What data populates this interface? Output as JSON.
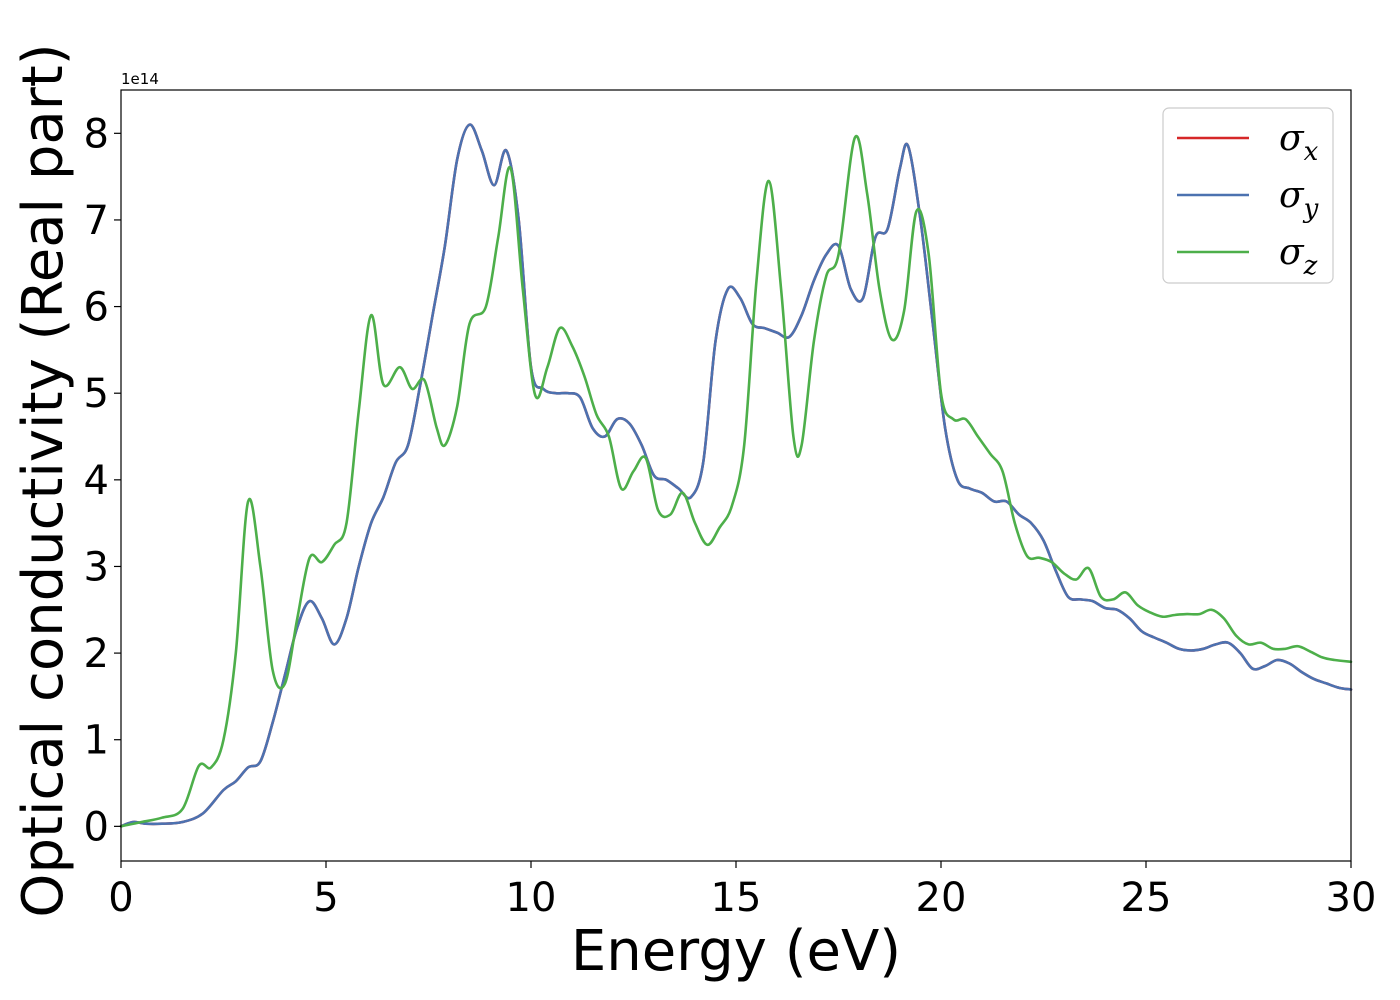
{
  "chart_data": {
    "type": "line",
    "xlabel": "Energy (eV)",
    "ylabel": "Optical conductivity (Real part)",
    "y_offset_label": "1e14",
    "xlim": [
      0,
      30
    ],
    "ylim": [
      -0.4,
      8.5
    ],
    "x_ticks": [
      0,
      5,
      10,
      15,
      20,
      25,
      30
    ],
    "y_ticks": [
      0,
      1,
      2,
      3,
      4,
      5,
      6,
      7,
      8
    ],
    "grid": false,
    "legend_position": "top-right",
    "series": [
      {
        "name": "σx",
        "legend_symbol": "σ",
        "legend_sub": "x",
        "color": "#d62728",
        "x": [
          0,
          0.3,
          0.6,
          1.0,
          1.5,
          2.0,
          2.5,
          2.8,
          3.1,
          3.4,
          3.7,
          4.0,
          4.3,
          4.6,
          4.9,
          5.2,
          5.5,
          5.8,
          6.1,
          6.4,
          6.7,
          7.0,
          7.3,
          7.6,
          7.9,
          8.2,
          8.5,
          8.8,
          9.1,
          9.4,
          9.7,
          10.0,
          10.3,
          10.6,
          10.9,
          11.2,
          11.5,
          11.8,
          12.1,
          12.4,
          12.7,
          13.0,
          13.3,
          13.6,
          13.9,
          14.2,
          14.5,
          14.8,
          15.1,
          15.4,
          15.7,
          16.0,
          16.3,
          16.6,
          16.9,
          17.2,
          17.5,
          17.8,
          18.1,
          18.4,
          18.7,
          19.0,
          19.2,
          19.5,
          19.8,
          20.1,
          20.4,
          20.7,
          21.0,
          21.3,
          21.6,
          21.9,
          22.2,
          22.5,
          22.8,
          23.1,
          23.4,
          23.7,
          24.0,
          24.3,
          24.6,
          24.9,
          25.2,
          25.5,
          25.8,
          26.1,
          26.4,
          26.7,
          27.0,
          27.3,
          27.6,
          27.9,
          28.2,
          28.5,
          28.8,
          29.1,
          29.4,
          29.7,
          30.0
        ],
        "values": [
          0,
          0.05,
          0.03,
          0.03,
          0.05,
          0.15,
          0.42,
          0.52,
          0.68,
          0.75,
          1.2,
          1.75,
          2.3,
          2.6,
          2.4,
          2.1,
          2.4,
          3.0,
          3.5,
          3.8,
          4.2,
          4.4,
          5.1,
          5.9,
          6.7,
          7.7,
          8.1,
          7.8,
          7.4,
          7.8,
          7.0,
          5.3,
          5.05,
          5.0,
          5.0,
          4.95,
          4.6,
          4.5,
          4.7,
          4.65,
          4.4,
          4.05,
          4.0,
          3.9,
          3.8,
          4.2,
          5.6,
          6.2,
          6.1,
          5.8,
          5.75,
          5.7,
          5.65,
          5.9,
          6.3,
          6.6,
          6.7,
          6.2,
          6.1,
          6.8,
          6.9,
          7.6,
          7.85,
          7.0,
          5.8,
          4.6,
          4.0,
          3.9,
          3.85,
          3.75,
          3.75,
          3.6,
          3.5,
          3.3,
          2.95,
          2.65,
          2.62,
          2.6,
          2.52,
          2.5,
          2.4,
          2.25,
          2.18,
          2.12,
          2.05,
          2.03,
          2.05,
          2.1,
          2.12,
          2.0,
          1.82,
          1.85,
          1.92,
          1.88,
          1.78,
          1.7,
          1.65,
          1.6,
          1.58
        ]
      },
      {
        "name": "σy",
        "legend_symbol": "σ",
        "legend_sub": "y",
        "color": "#4c72b0",
        "x": [
          0,
          0.3,
          0.6,
          1.0,
          1.5,
          2.0,
          2.5,
          2.8,
          3.1,
          3.4,
          3.7,
          4.0,
          4.3,
          4.6,
          4.9,
          5.2,
          5.5,
          5.8,
          6.1,
          6.4,
          6.7,
          7.0,
          7.3,
          7.6,
          7.9,
          8.2,
          8.5,
          8.8,
          9.1,
          9.4,
          9.7,
          10.0,
          10.3,
          10.6,
          10.9,
          11.2,
          11.5,
          11.8,
          12.1,
          12.4,
          12.7,
          13.0,
          13.3,
          13.6,
          13.9,
          14.2,
          14.5,
          14.8,
          15.1,
          15.4,
          15.7,
          16.0,
          16.3,
          16.6,
          16.9,
          17.2,
          17.5,
          17.8,
          18.1,
          18.4,
          18.7,
          19.0,
          19.2,
          19.5,
          19.8,
          20.1,
          20.4,
          20.7,
          21.0,
          21.3,
          21.6,
          21.9,
          22.2,
          22.5,
          22.8,
          23.1,
          23.4,
          23.7,
          24.0,
          24.3,
          24.6,
          24.9,
          25.2,
          25.5,
          25.8,
          26.1,
          26.4,
          26.7,
          27.0,
          27.3,
          27.6,
          27.9,
          28.2,
          28.5,
          28.8,
          29.1,
          29.4,
          29.7,
          30.0
        ],
        "values": [
          0,
          0.05,
          0.03,
          0.03,
          0.05,
          0.15,
          0.42,
          0.52,
          0.68,
          0.75,
          1.2,
          1.75,
          2.3,
          2.6,
          2.4,
          2.1,
          2.4,
          3.0,
          3.5,
          3.8,
          4.2,
          4.4,
          5.1,
          5.9,
          6.7,
          7.7,
          8.1,
          7.8,
          7.4,
          7.8,
          7.0,
          5.3,
          5.05,
          5.0,
          5.0,
          4.95,
          4.6,
          4.5,
          4.7,
          4.65,
          4.4,
          4.05,
          4.0,
          3.9,
          3.8,
          4.2,
          5.6,
          6.2,
          6.1,
          5.8,
          5.75,
          5.7,
          5.65,
          5.9,
          6.3,
          6.6,
          6.7,
          6.2,
          6.1,
          6.8,
          6.9,
          7.6,
          7.85,
          7.0,
          5.8,
          4.6,
          4.0,
          3.9,
          3.85,
          3.75,
          3.75,
          3.6,
          3.5,
          3.3,
          2.95,
          2.65,
          2.62,
          2.6,
          2.52,
          2.5,
          2.4,
          2.25,
          2.18,
          2.12,
          2.05,
          2.03,
          2.05,
          2.1,
          2.12,
          2.0,
          1.82,
          1.85,
          1.92,
          1.88,
          1.78,
          1.7,
          1.65,
          1.6,
          1.58
        ]
      },
      {
        "name": "σz",
        "legend_symbol": "σ",
        "legend_sub": "z",
        "color": "#4daf4a",
        "x": [
          0,
          0.5,
          1.0,
          1.5,
          1.9,
          2.2,
          2.5,
          2.8,
          3.1,
          3.4,
          3.7,
          4.0,
          4.3,
          4.6,
          4.9,
          5.2,
          5.5,
          5.8,
          6.1,
          6.4,
          6.8,
          7.1,
          7.4,
          7.7,
          7.9,
          8.2,
          8.5,
          8.9,
          9.2,
          9.5,
          9.8,
          10.1,
          10.4,
          10.7,
          11.0,
          11.3,
          11.6,
          11.9,
          12.2,
          12.5,
          12.8,
          13.1,
          13.4,
          13.7,
          14.0,
          14.3,
          14.6,
          14.9,
          15.2,
          15.5,
          15.8,
          16.1,
          16.4,
          16.6,
          16.9,
          17.2,
          17.5,
          17.9,
          18.2,
          18.5,
          18.8,
          19.1,
          19.4,
          19.7,
          20.0,
          20.3,
          20.6,
          20.9,
          21.2,
          21.5,
          21.8,
          22.1,
          22.4,
          22.7,
          23.0,
          23.3,
          23.6,
          23.9,
          24.2,
          24.5,
          24.8,
          25.1,
          25.4,
          25.7,
          26.0,
          26.3,
          26.6,
          26.9,
          27.2,
          27.5,
          27.8,
          28.1,
          28.4,
          28.7,
          29.0,
          29.3,
          29.6,
          30.0
        ],
        "values": [
          0,
          0.05,
          0.1,
          0.2,
          0.7,
          0.68,
          1.0,
          2.0,
          3.75,
          3.0,
          1.8,
          1.65,
          2.4,
          3.1,
          3.05,
          3.25,
          3.5,
          4.8,
          5.9,
          5.1,
          5.3,
          5.05,
          5.15,
          4.6,
          4.4,
          4.85,
          5.8,
          6.0,
          6.8,
          7.6,
          6.2,
          4.98,
          5.3,
          5.75,
          5.55,
          5.2,
          4.75,
          4.5,
          3.9,
          4.1,
          4.25,
          3.65,
          3.6,
          3.85,
          3.5,
          3.25,
          3.45,
          3.7,
          4.4,
          6.3,
          7.45,
          6.2,
          4.5,
          4.4,
          5.6,
          6.35,
          6.6,
          7.95,
          7.3,
          6.2,
          5.62,
          5.95,
          7.1,
          6.6,
          5.0,
          4.7,
          4.7,
          4.5,
          4.3,
          4.1,
          3.5,
          3.12,
          3.1,
          3.05,
          2.92,
          2.85,
          2.98,
          2.65,
          2.62,
          2.7,
          2.55,
          2.47,
          2.42,
          2.44,
          2.45,
          2.45,
          2.5,
          2.4,
          2.2,
          2.1,
          2.12,
          2.05,
          2.05,
          2.08,
          2.02,
          1.95,
          1.92,
          1.9
        ]
      }
    ]
  }
}
